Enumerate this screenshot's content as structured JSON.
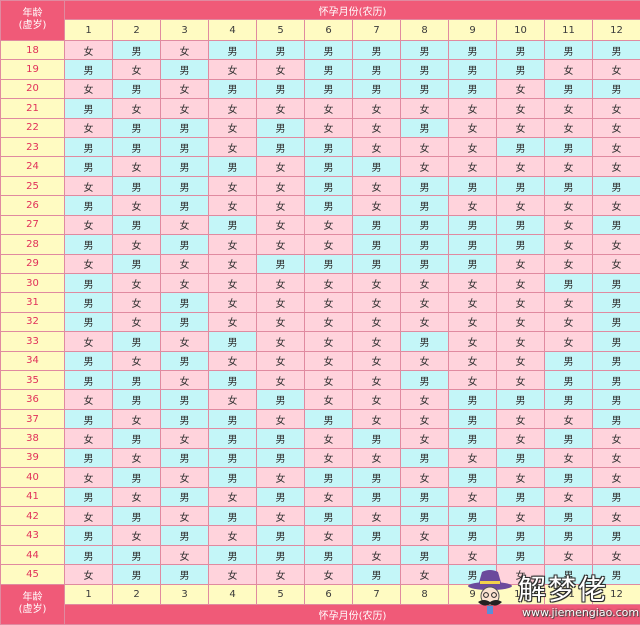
{
  "header": {
    "age_label_line1": "年龄",
    "age_label_line2": "(虚岁)",
    "month_title": "怀孕月份(农历)"
  },
  "footer": {
    "age_label_line1": "年龄",
    "age_label_line2": "(虚岁)",
    "month_title": "怀孕月份(农历)"
  },
  "months": [
    "1",
    "2",
    "3",
    "4",
    "5",
    "6",
    "7",
    "8",
    "9",
    "10",
    "11",
    "12"
  ],
  "rows": [
    {
      "age": "18",
      "cells": [
        "女",
        "男",
        "女",
        "男",
        "男",
        "男",
        "男",
        "男",
        "男",
        "男",
        "男",
        "男"
      ]
    },
    {
      "age": "19",
      "cells": [
        "男",
        "女",
        "男",
        "女",
        "女",
        "男",
        "男",
        "男",
        "男",
        "男",
        "女",
        "女"
      ]
    },
    {
      "age": "20",
      "cells": [
        "女",
        "男",
        "女",
        "男",
        "男",
        "男",
        "男",
        "男",
        "男",
        "女",
        "男",
        "男"
      ]
    },
    {
      "age": "21",
      "cells": [
        "男",
        "女",
        "女",
        "女",
        "女",
        "女",
        "女",
        "女",
        "女",
        "女",
        "女",
        "女"
      ]
    },
    {
      "age": "22",
      "cells": [
        "女",
        "男",
        "男",
        "女",
        "男",
        "女",
        "女",
        "男",
        "女",
        "女",
        "女",
        "女"
      ]
    },
    {
      "age": "23",
      "cells": [
        "男",
        "男",
        "男",
        "女",
        "男",
        "男",
        "女",
        "女",
        "女",
        "男",
        "男",
        "女"
      ]
    },
    {
      "age": "24",
      "cells": [
        "男",
        "女",
        "男",
        "男",
        "女",
        "男",
        "男",
        "女",
        "女",
        "女",
        "女",
        "女"
      ]
    },
    {
      "age": "25",
      "cells": [
        "女",
        "男",
        "男",
        "女",
        "女",
        "男",
        "女",
        "男",
        "男",
        "男",
        "男",
        "男"
      ]
    },
    {
      "age": "26",
      "cells": [
        "男",
        "女",
        "男",
        "女",
        "女",
        "男",
        "女",
        "男",
        "女",
        "女",
        "女",
        "女"
      ]
    },
    {
      "age": "27",
      "cells": [
        "女",
        "男",
        "女",
        "男",
        "女",
        "女",
        "男",
        "男",
        "男",
        "男",
        "女",
        "男"
      ]
    },
    {
      "age": "28",
      "cells": [
        "男",
        "女",
        "男",
        "女",
        "女",
        "女",
        "男",
        "男",
        "男",
        "男",
        "女",
        "女"
      ]
    },
    {
      "age": "29",
      "cells": [
        "女",
        "男",
        "女",
        "女",
        "男",
        "男",
        "男",
        "男",
        "男",
        "女",
        "女",
        "女"
      ]
    },
    {
      "age": "30",
      "cells": [
        "男",
        "女",
        "女",
        "女",
        "女",
        "女",
        "女",
        "女",
        "女",
        "女",
        "男",
        "男"
      ]
    },
    {
      "age": "31",
      "cells": [
        "男",
        "女",
        "男",
        "女",
        "女",
        "女",
        "女",
        "女",
        "女",
        "女",
        "女",
        "男"
      ]
    },
    {
      "age": "32",
      "cells": [
        "男",
        "女",
        "男",
        "女",
        "女",
        "女",
        "女",
        "女",
        "女",
        "女",
        "女",
        "男"
      ]
    },
    {
      "age": "33",
      "cells": [
        "女",
        "男",
        "女",
        "男",
        "女",
        "女",
        "女",
        "男",
        "女",
        "女",
        "女",
        "男"
      ]
    },
    {
      "age": "34",
      "cells": [
        "男",
        "女",
        "男",
        "女",
        "女",
        "女",
        "女",
        "女",
        "女",
        "女",
        "男",
        "男"
      ]
    },
    {
      "age": "35",
      "cells": [
        "男",
        "男",
        "女",
        "男",
        "女",
        "女",
        "女",
        "男",
        "女",
        "女",
        "男",
        "男"
      ]
    },
    {
      "age": "36",
      "cells": [
        "女",
        "男",
        "男",
        "女",
        "男",
        "女",
        "女",
        "女",
        "男",
        "男",
        "男",
        "男"
      ]
    },
    {
      "age": "37",
      "cells": [
        "男",
        "女",
        "男",
        "男",
        "女",
        "男",
        "女",
        "女",
        "男",
        "女",
        "女",
        "男"
      ]
    },
    {
      "age": "38",
      "cells": [
        "女",
        "男",
        "女",
        "男",
        "男",
        "女",
        "男",
        "女",
        "男",
        "女",
        "男",
        "女"
      ]
    },
    {
      "age": "39",
      "cells": [
        "男",
        "女",
        "男",
        "男",
        "男",
        "女",
        "女",
        "男",
        "女",
        "男",
        "女",
        "女"
      ]
    },
    {
      "age": "40",
      "cells": [
        "女",
        "男",
        "女",
        "男",
        "女",
        "男",
        "男",
        "女",
        "男",
        "女",
        "男",
        "女"
      ]
    },
    {
      "age": "41",
      "cells": [
        "男",
        "女",
        "男",
        "女",
        "男",
        "女",
        "男",
        "男",
        "女",
        "男",
        "女",
        "男"
      ]
    },
    {
      "age": "42",
      "cells": [
        "女",
        "男",
        "女",
        "男",
        "女",
        "男",
        "女",
        "男",
        "男",
        "女",
        "男",
        "女"
      ]
    },
    {
      "age": "43",
      "cells": [
        "男",
        "女",
        "男",
        "女",
        "男",
        "女",
        "男",
        "女",
        "男",
        "男",
        "男",
        "男"
      ]
    },
    {
      "age": "44",
      "cells": [
        "男",
        "男",
        "女",
        "男",
        "男",
        "男",
        "女",
        "男",
        "女",
        "男",
        "女",
        "女"
      ]
    },
    {
      "age": "45",
      "cells": [
        "女",
        "男",
        "男",
        "女",
        "女",
        "女",
        "男",
        "女",
        "男",
        "女",
        "男",
        "男"
      ]
    }
  ],
  "colors": {
    "header_red": "#f05a78",
    "age_yellow": "#fffbc2",
    "boy_cyan": "#c4f6f8",
    "girl_pink": "#ffd3dc"
  },
  "watermark": {
    "name": "解梦佬",
    "url": "www.jiemengiao.com",
    "icon": "mustache-hat-logo-icon"
  }
}
